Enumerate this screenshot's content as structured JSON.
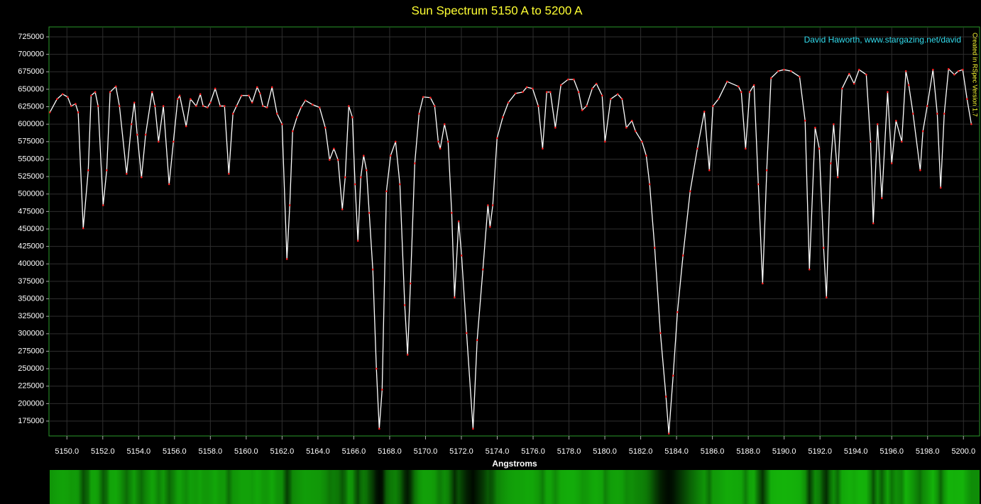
{
  "chart_data": {
    "type": "line",
    "title": "Sun Spectrum 5150 A to 5200 A",
    "x_label": "Angstroms",
    "annotation": "David Haworth, www.stargazing.net/david",
    "side_note": "Created in RSpec Version 1.7",
    "color": "#ffffff",
    "marker_color": "#ff2020",
    "grid": true,
    "xlim": [
      5149.0,
      5200.9
    ],
    "ylim": [
      153700,
      739200
    ],
    "xticks": [
      {
        "value": 5150,
        "label": "5150.0"
      },
      {
        "value": 5152,
        "label": "5152.0"
      },
      {
        "value": 5154,
        "label": "5154.0"
      },
      {
        "value": 5156,
        "label": "5156.0"
      },
      {
        "value": 5158,
        "label": "5158.0"
      },
      {
        "value": 5160,
        "label": "5160.0"
      },
      {
        "value": 5162,
        "label": "5162.0"
      },
      {
        "value": 5164,
        "label": "5164.0"
      },
      {
        "value": 5166,
        "label": "5166.0"
      },
      {
        "value": 5168,
        "label": "5168.0"
      },
      {
        "value": 5170,
        "label": "5170.0"
      },
      {
        "value": 5172,
        "label": "5172.0"
      },
      {
        "value": 5174,
        "label": "5174.0"
      },
      {
        "value": 5176,
        "label": "5176.0"
      },
      {
        "value": 5178,
        "label": "5178.0"
      },
      {
        "value": 5180,
        "label": "5180.0"
      },
      {
        "value": 5182,
        "label": "5182.0"
      },
      {
        "value": 5184,
        "label": "5184.0"
      },
      {
        "value": 5186,
        "label": "5186.0"
      },
      {
        "value": 5188,
        "label": "5188.0"
      },
      {
        "value": 5190,
        "label": "5190.0"
      },
      {
        "value": 5192,
        "label": "5192.0"
      },
      {
        "value": 5194,
        "label": "5194.0"
      },
      {
        "value": 5196,
        "label": "5196.0"
      },
      {
        "value": 5198,
        "label": "5198.0"
      },
      {
        "value": 5200,
        "label": "5200.0"
      }
    ],
    "yticks": [
      175000,
      200000,
      225000,
      250000,
      275000,
      300000,
      325000,
      350000,
      375000,
      400000,
      425000,
      450000,
      475000,
      500000,
      525000,
      550000,
      575000,
      600000,
      625000,
      650000,
      675000,
      700000,
      725000
    ],
    "x": [
      5149.05,
      5149.45,
      5149.76,
      5150.04,
      5150.24,
      5150.48,
      5150.63,
      5150.91,
      5151.19,
      5151.35,
      5151.58,
      5151.74,
      5152.02,
      5152.22,
      5152.41,
      5152.73,
      5152.93,
      5153.33,
      5153.6,
      5153.76,
      5153.92,
      5154.16,
      5154.39,
      5154.75,
      5154.91,
      5155.11,
      5155.38,
      5155.7,
      5155.94,
      5156.18,
      5156.29,
      5156.65,
      5156.89,
      5157.21,
      5157.44,
      5157.6,
      5157.84,
      5158.0,
      5158.27,
      5158.55,
      5158.79,
      5159.03,
      5159.26,
      5159.46,
      5159.74,
      5160.14,
      5160.33,
      5160.61,
      5160.77,
      5160.93,
      5161.16,
      5161.44,
      5161.72,
      5162.0,
      5162.27,
      5162.43,
      5162.59,
      5162.83,
      5163.06,
      5163.3,
      5163.7,
      5164.09,
      5164.41,
      5164.65,
      5164.89,
      5165.12,
      5165.36,
      5165.52,
      5165.72,
      5165.92,
      5166.07,
      5166.23,
      5166.39,
      5166.55,
      5166.71,
      5166.86,
      5167.06,
      5167.26,
      5167.42,
      5167.58,
      5167.82,
      5168.05,
      5168.33,
      5168.57,
      5168.84,
      5169.0,
      5169.16,
      5169.4,
      5169.64,
      5169.87,
      5170.27,
      5170.51,
      5170.71,
      5170.82,
      5171.06,
      5171.26,
      5171.46,
      5171.62,
      5171.85,
      5172.01,
      5172.29,
      5172.65,
      5172.88,
      5173.2,
      5173.48,
      5173.6,
      5173.75,
      5173.99,
      5174.31,
      5174.62,
      5175.02,
      5175.42,
      5175.65,
      5175.97,
      5176.29,
      5176.53,
      5176.76,
      5176.96,
      5177.24,
      5177.55,
      5177.95,
      5178.27,
      5178.54,
      5178.74,
      5178.98,
      5179.3,
      5179.53,
      5179.85,
      5180.01,
      5180.33,
      5180.72,
      5180.96,
      5181.2,
      5181.51,
      5181.71,
      5182.07,
      5182.31,
      5182.5,
      5182.78,
      5183.1,
      5183.41,
      5183.57,
      5183.81,
      5184.05,
      5184.36,
      5184.76,
      5185.16,
      5185.55,
      5185.83,
      5186.03,
      5186.34,
      5186.82,
      5187.45,
      5187.61,
      5187.85,
      5188.08,
      5188.32,
      5188.56,
      5188.8,
      5189.03,
      5189.27,
      5189.67,
      5189.99,
      5190.38,
      5190.86,
      5191.17,
      5191.41,
      5191.73,
      5191.96,
      5192.2,
      5192.36,
      5192.6,
      5192.76,
      5192.99,
      5193.23,
      5193.63,
      5193.9,
      5194.18,
      5194.58,
      5194.82,
      5194.97,
      5195.21,
      5195.45,
      5195.77,
      5196.0,
      5196.24,
      5196.56,
      5196.79,
      5196.95,
      5197.19,
      5197.59,
      5197.74,
      5197.98,
      5198.3,
      5198.54,
      5198.73,
      5198.93,
      5199.17,
      5199.49,
      5199.72,
      5199.96,
      5200.2,
      5200.44
    ],
    "values": [
      617000,
      636000,
      643000,
      639000,
      626000,
      629000,
      617000,
      451000,
      534000,
      641000,
      646000,
      626000,
      484000,
      534000,
      646000,
      654000,
      626000,
      529000,
      600000,
      631000,
      585000,
      524000,
      585000,
      646000,
      626000,
      575000,
      626000,
      514000,
      575000,
      636000,
      641000,
      597000,
      636000,
      626000,
      643000,
      626000,
      624000,
      631000,
      651000,
      626000,
      626000,
      529000,
      615000,
      626000,
      641000,
      641000,
      631000,
      653000,
      644000,
      626000,
      624000,
      653000,
      615000,
      600000,
      407000,
      484000,
      590000,
      610000,
      624000,
      634000,
      628000,
      624000,
      595000,
      549000,
      565000,
      549000,
      478000,
      524000,
      626000,
      610000,
      514000,
      433000,
      524000,
      555000,
      534000,
      473000,
      392000,
      250000,
      164000,
      220000,
      504000,
      555000,
      575000,
      514000,
      341000,
      270000,
      372000,
      544000,
      615000,
      639000,
      638000,
      626000,
      575000,
      565000,
      600000,
      575000,
      473000,
      352000,
      461000,
      412000,
      301000,
      164000,
      291000,
      392000,
      484000,
      453000,
      484000,
      580000,
      610000,
      631000,
      644000,
      646000,
      653000,
      651000,
      626000,
      565000,
      646000,
      646000,
      595000,
      656000,
      664000,
      664000,
      646000,
      620000,
      626000,
      651000,
      658000,
      641000,
      575000,
      636000,
      643000,
      636000,
      595000,
      605000,
      590000,
      575000,
      555000,
      514000,
      423000,
      301000,
      210000,
      157000,
      240000,
      331000,
      412000,
      504000,
      565000,
      618000,
      534000,
      626000,
      636000,
      661000,
      654000,
      646000,
      565000,
      646000,
      656000,
      514000,
      372000,
      534000,
      666000,
      676000,
      678000,
      676000,
      668000,
      605000,
      392000,
      595000,
      565000,
      423000,
      352000,
      544000,
      600000,
      524000,
      651000,
      672000,
      658000,
      678000,
      671000,
      575000,
      458000,
      600000,
      494000,
      646000,
      544000,
      605000,
      575000,
      676000,
      656000,
      615000,
      534000,
      590000,
      626000,
      678000,
      615000,
      509000,
      615000,
      679000,
      671000,
      676000,
      678000,
      636000,
      600000
    ]
  }
}
